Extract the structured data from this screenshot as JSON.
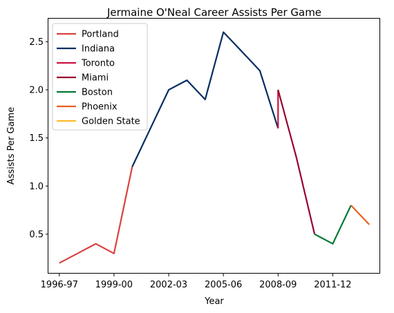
{
  "chart_data": {
    "type": "line",
    "title": "Jermaine O'Neal Career Assists Per Game",
    "xlabel": "Year",
    "ylabel": "Assists Per Game",
    "x_tick_labels": [
      "1996-97",
      "1999-00",
      "2002-03",
      "2005-06",
      "2008-09",
      "2011-12"
    ],
    "x_tick_index": [
      0,
      3,
      6,
      9,
      12,
      15
    ],
    "xlim": [
      -0.6,
      17.6
    ],
    "yticks": [
      0.5,
      1.0,
      1.5,
      2.0,
      2.5
    ],
    "ytick_labels": [
      "0.5",
      "1.0",
      "1.5",
      "2.0",
      "2.5"
    ],
    "ylim": [
      0.09,
      2.74
    ],
    "legend_position": "top-left",
    "grid": false,
    "series": [
      {
        "name": "Portland",
        "color": "#d9413c",
        "points": [
          [
            0,
            0.2
          ],
          [
            1,
            0.3
          ],
          [
            2,
            0.4
          ],
          [
            3,
            0.3
          ],
          [
            4,
            1.2
          ]
        ]
      },
      {
        "name": "Indiana",
        "color": "#002d62",
        "points": [
          [
            4,
            1.2
          ],
          [
            5,
            1.6
          ],
          [
            6,
            2.0
          ],
          [
            7,
            2.1
          ],
          [
            8,
            1.9
          ],
          [
            9,
            2.6
          ],
          [
            10,
            2.4
          ],
          [
            11,
            2.2
          ],
          [
            12,
            1.6
          ]
        ]
      },
      {
        "name": "Toronto",
        "color": "#ce1141",
        "points": [
          [
            12,
            1.6
          ],
          [
            12,
            2.0
          ]
        ]
      },
      {
        "name": "Miami",
        "color": "#98002e",
        "points": [
          [
            12,
            2.0
          ],
          [
            13,
            1.3
          ],
          [
            14,
            0.5
          ]
        ]
      },
      {
        "name": "Boston",
        "color": "#007a33",
        "points": [
          [
            14,
            0.5
          ],
          [
            15,
            0.4
          ],
          [
            16,
            0.8
          ]
        ]
      },
      {
        "name": "Phoenix",
        "color": "#e56020",
        "points": [
          [
            16,
            0.8
          ],
          [
            17,
            0.6
          ]
        ]
      },
      {
        "name": "Golden State",
        "color": "#fdb927",
        "points": []
      }
    ]
  }
}
